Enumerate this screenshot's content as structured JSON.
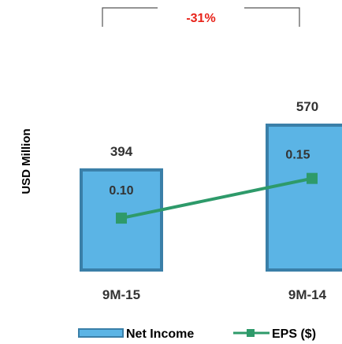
{
  "chart_data": {
    "type": "bar",
    "categories": [
      "9M-15",
      "9M-14"
    ],
    "ylabel": "USD Million",
    "series": [
      {
        "name": "Net Income",
        "type": "bar",
        "values": [
          394,
          570
        ],
        "color": "#5BB4E5",
        "stroke": "#3A7FA8"
      },
      {
        "name": "EPS ($)",
        "type": "line",
        "values": [
          0.1,
          0.15
        ],
        "labels": [
          "0.10",
          "0.15"
        ],
        "color": "#2E9A6A"
      }
    ],
    "bar_labels": [
      "394",
      "570"
    ],
    "change_annotation": {
      "text": "-31%",
      "color": "#E8231A"
    },
    "legend_position": "bottom"
  }
}
